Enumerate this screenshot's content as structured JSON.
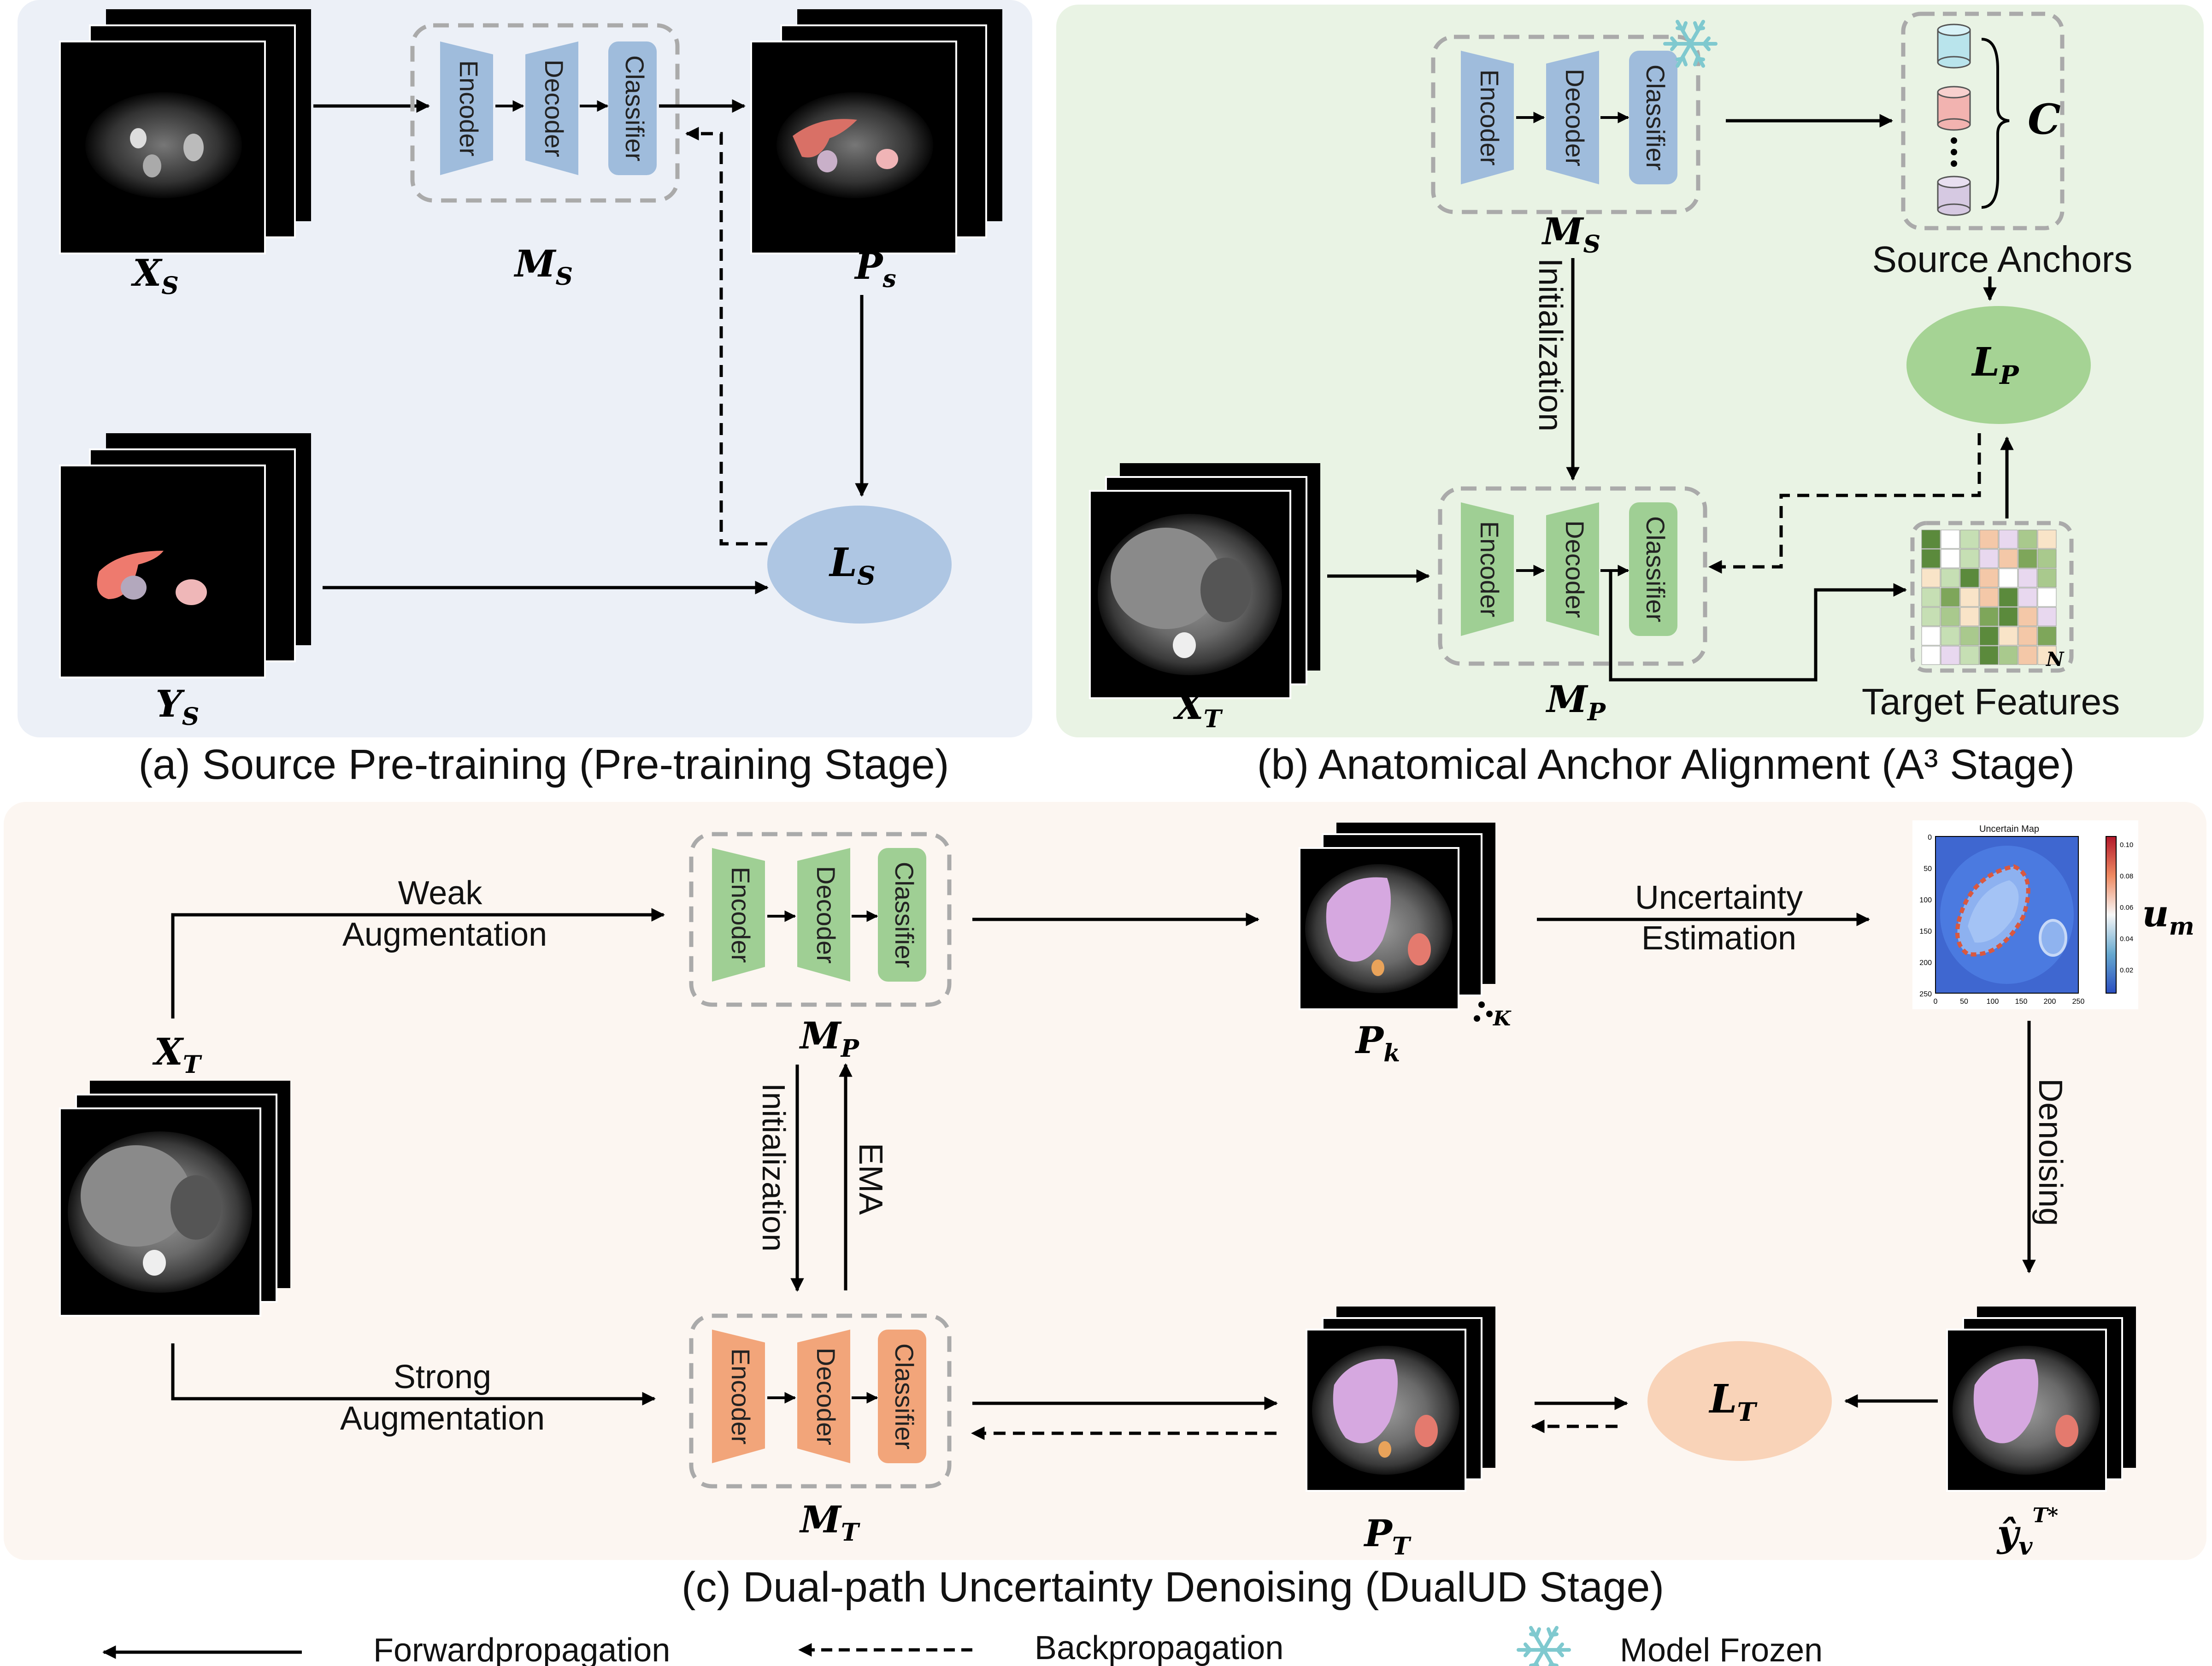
{
  "panels": {
    "a_caption": "(a) Source Pre-training (Pre-training Stage)",
    "b_caption": "(b) Anatomical Anchor Alignment (A³ Stage)",
    "c_caption": "(c) Dual-path Uncertainty Denoising (DualUD Stage)"
  },
  "modules": {
    "encoder": "Encoder",
    "decoder": "Decoder",
    "classifier": "Classifier"
  },
  "panel_a": {
    "xs": "X",
    "xs_sub": "S",
    "ms": "M",
    "ms_sub": "S",
    "ps": "P",
    "ps_sub": "s",
    "ys": "Y",
    "ys_sub": "S",
    "ls": "L",
    "ls_sub": "S"
  },
  "panel_b": {
    "ms": "M",
    "ms_sub": "S",
    "mp": "M",
    "mp_sub": "P",
    "xt": "X",
    "xt_sub": "T",
    "lp": "L",
    "lp_sub": "P",
    "c": "C",
    "init": "Initialization",
    "source_anchors": "Source Anchors",
    "target_features": "Target Features",
    "n": "N"
  },
  "panel_c": {
    "weak1": "Weak",
    "weak2": "Augmentation",
    "strong1": "Strong",
    "strong2": "Augmentation",
    "xt": "X",
    "xt_sub": "T",
    "mp": "M",
    "mp_sub": "P",
    "mt": "M",
    "mt_sub": "T",
    "init": "Initialization",
    "ema": "EMA",
    "pk": "P",
    "pk_sub": "k",
    "k": "K",
    "pt": "P",
    "pt_sub": "T",
    "lt": "L",
    "lt_sub": "T",
    "unc1": "Uncertainty",
    "unc2": "Estimation",
    "um": "u",
    "um_sub": "m",
    "denoise": "Denoising",
    "yhat": "ŷ",
    "yhat_sub": "v",
    "yhat_sup": "T*",
    "map_title": "Uncertain Map",
    "map_ticks_x": [
      "0",
      "50",
      "100",
      "150",
      "200",
      "250"
    ],
    "map_ticks_y": [
      "0",
      "50",
      "100",
      "150",
      "200",
      "250"
    ],
    "map_cbar": [
      "0.10",
      "0.08",
      "0.06",
      "0.04",
      "0.02"
    ]
  },
  "legend": {
    "forward": "Forwardpropagation",
    "backward": "Backpropagation",
    "frozen": "Model Frozen"
  },
  "colors": {
    "panel_a_bg": "#ecf0f7",
    "panel_b_bg": "#e9f3e4",
    "panel_c_bg": "#fcf6f1",
    "blue_module": "#9fbcdc",
    "green_module": "#9fcf94",
    "orange_module": "#f2a57a",
    "ls_ellipse": "#aec6e3",
    "lp_ellipse": "#a5d394",
    "lt_ellipse": "#f9d3b8",
    "snowflake": "#7fc9cf",
    "liver_seg": "#e47a6e",
    "liver_pred": "#d6a8e0"
  }
}
